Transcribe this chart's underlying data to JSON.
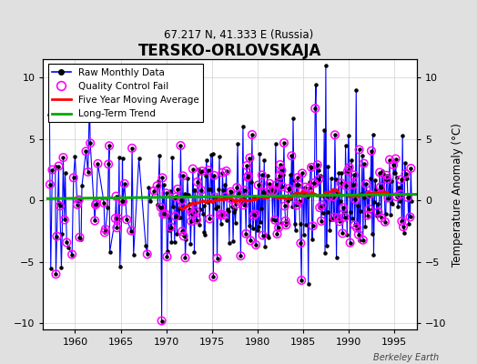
{
  "title": "TERSKO-ORLOVSKAJA",
  "subtitle": "67.217 N, 41.333 E (Russia)",
  "ylabel": "Temperature Anomaly (°C)",
  "xlabel": "",
  "watermark": "Berkeley Earth",
  "ylim": [
    -10.5,
    11.5
  ],
  "xlim": [
    1956.5,
    1997.5
  ],
  "yticks": [
    -10,
    -5,
    0,
    5,
    10
  ],
  "xticks": [
    1960,
    1965,
    1970,
    1975,
    1980,
    1985,
    1990,
    1995
  ],
  "bg_color": "#e0e0e0",
  "plot_bg_color": "#ffffff",
  "line_color": "#0000ff",
  "dot_color": "#000000",
  "qc_color": "#ff00ff",
  "ma_color": "#ff0000",
  "trend_color": "#00aa00",
  "legend_labels": [
    "Raw Monthly Data",
    "Quality Control Fail",
    "Five Year Moving Average",
    "Long-Term Trend"
  ]
}
